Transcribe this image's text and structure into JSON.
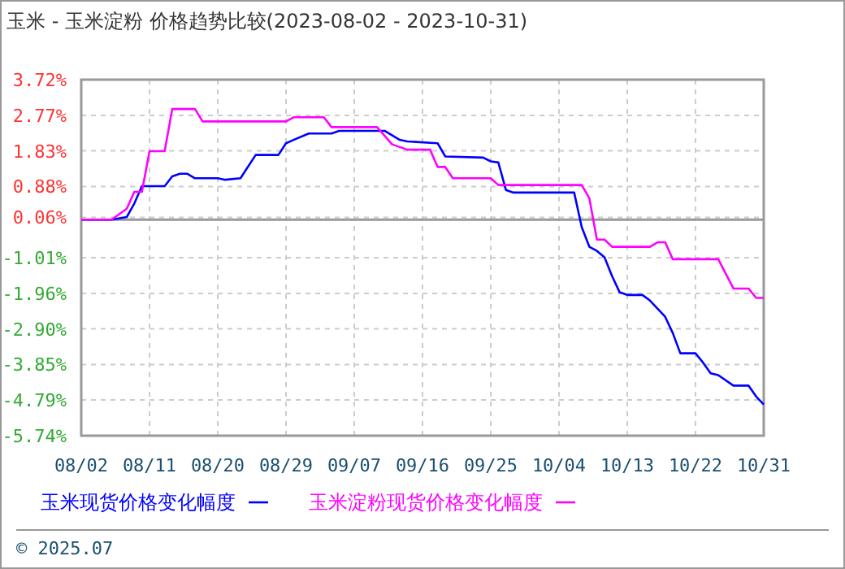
{
  "chart_data": {
    "type": "line",
    "title": "玉米 - 玉米淀粉 价格趋势比较(2023-08-02 - 2023-10-31)",
    "xlim": [
      "2023-08-02",
      "2023-10-31"
    ],
    "xticks": [
      {
        "value": "2023-08-02",
        "label": "08/02"
      },
      {
        "value": "2023-08-11",
        "label": "08/11"
      },
      {
        "value": "2023-08-20",
        "label": "08/20"
      },
      {
        "value": "2023-08-29",
        "label": "08/29"
      },
      {
        "value": "2023-09-07",
        "label": "09/07"
      },
      {
        "value": "2023-09-16",
        "label": "09/16"
      },
      {
        "value": "2023-09-25",
        "label": "09/25"
      },
      {
        "value": "2023-10-04",
        "label": "10/04"
      },
      {
        "value": "2023-10-13",
        "label": "10/13"
      },
      {
        "value": "2023-10-22",
        "label": "10/22"
      },
      {
        "value": "2023-10-31",
        "label": "10/31"
      }
    ],
    "ylim": [
      -5.74,
      3.72
    ],
    "yticks": [
      {
        "value": -5.74,
        "label": "-5.74%"
      },
      {
        "value": -4.79,
        "label": "-4.79%"
      },
      {
        "value": -3.85,
        "label": "-3.85%"
      },
      {
        "value": -2.9,
        "label": "-2.90%"
      },
      {
        "value": -1.96,
        "label": "-1.96%"
      },
      {
        "value": -1.01,
        "label": "-1.01%"
      },
      {
        "value": 0.06,
        "label": "0.06%"
      },
      {
        "value": 0.88,
        "label": "0.88%"
      },
      {
        "value": 1.83,
        "label": "1.83%"
      },
      {
        "value": 2.77,
        "label": "2.77%"
      },
      {
        "value": 3.72,
        "label": "3.72%"
      }
    ],
    "grid": true,
    "legend": "bottom",
    "marker": "none",
    "line_style": "solid",
    "ref_lines": [
      {
        "axis": "y",
        "value": 0,
        "color": "#999999"
      }
    ],
    "annotations": [
      "© 2025.07"
    ],
    "series": [
      {
        "name": "玉米现货价格变化幅度",
        "color": "#0000ff",
        "x": [
          "2023-08-02",
          "2023-08-06",
          "2023-08-08",
          "2023-08-09",
          "2023-08-10",
          "2023-08-13",
          "2023-08-14",
          "2023-08-15",
          "2023-08-16",
          "2023-08-17",
          "2023-08-20",
          "2023-08-21",
          "2023-08-23",
          "2023-08-25",
          "2023-08-28",
          "2023-08-29",
          "2023-08-30",
          "2023-09-01",
          "2023-09-04",
          "2023-09-05",
          "2023-09-11",
          "2023-09-13",
          "2023-09-14",
          "2023-09-18",
          "2023-09-19",
          "2023-09-24",
          "2023-09-25",
          "2023-09-26",
          "2023-09-27",
          "2023-09-28",
          "2023-10-06",
          "2023-10-07",
          "2023-10-08",
          "2023-10-09",
          "2023-10-10",
          "2023-10-11",
          "2023-10-12",
          "2023-10-13",
          "2023-10-15",
          "2023-10-16",
          "2023-10-18",
          "2023-10-19",
          "2023-10-20",
          "2023-10-22",
          "2023-10-23",
          "2023-10-24",
          "2023-10-25",
          "2023-10-27",
          "2023-10-29",
          "2023-10-30",
          "2023-10-31"
        ],
        "values": [
          0,
          0,
          0.07,
          0.43,
          0.89,
          0.89,
          1.15,
          1.22,
          1.22,
          1.1,
          1.1,
          1.06,
          1.1,
          1.72,
          1.72,
          2.03,
          2.12,
          2.29,
          2.29,
          2.36,
          2.36,
          2.12,
          2.08,
          2.03,
          1.68,
          1.65,
          1.55,
          1.52,
          0.79,
          0.72,
          0.72,
          -0.2,
          -0.72,
          -0.83,
          -1.0,
          -1.5,
          -1.93,
          -2.0,
          -2.0,
          -2.15,
          -2.58,
          -3.01,
          -3.55,
          -3.55,
          -3.8,
          -4.08,
          -4.13,
          -4.41,
          -4.41,
          -4.7,
          -4.91
        ]
      },
      {
        "name": "玉米淀粉现货价格变化幅度",
        "color": "#ff00ff",
        "x": [
          "2023-08-02",
          "2023-08-06",
          "2023-08-08",
          "2023-08-09",
          "2023-08-10",
          "2023-08-11",
          "2023-08-13",
          "2023-08-14",
          "2023-08-17",
          "2023-08-18",
          "2023-08-29",
          "2023-08-30",
          "2023-09-03",
          "2023-09-04",
          "2023-09-10",
          "2023-09-12",
          "2023-09-14",
          "2023-09-17",
          "2023-09-18",
          "2023-09-19",
          "2023-09-20",
          "2023-09-25",
          "2023-09-26",
          "2023-10-07",
          "2023-10-08",
          "2023-10-09",
          "2023-10-10",
          "2023-10-11",
          "2023-10-16",
          "2023-10-17",
          "2023-10-18",
          "2023-10-19",
          "2023-10-25",
          "2023-10-27",
          "2023-10-29",
          "2023-10-30",
          "2023-10-31"
        ],
        "values": [
          0,
          0,
          0.29,
          0.74,
          0.74,
          1.82,
          1.82,
          2.94,
          2.94,
          2.61,
          2.61,
          2.72,
          2.72,
          2.46,
          2.46,
          2.0,
          1.86,
          1.86,
          1.4,
          1.4,
          1.1,
          1.1,
          0.92,
          0.92,
          0.57,
          -0.53,
          -0.53,
          -0.72,
          -0.72,
          -0.6,
          -0.6,
          -1.05,
          -1.05,
          -1.83,
          -1.83,
          -2.08,
          -2.08
        ]
      }
    ]
  }
}
